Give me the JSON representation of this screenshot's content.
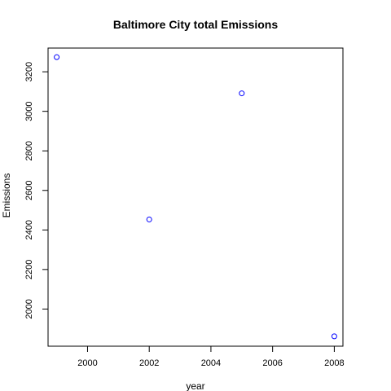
{
  "chart_data": {
    "type": "scatter",
    "title": "Baltimore City total Emissions",
    "xlabel": "year",
    "ylabel": "Emissions",
    "x": [
      1999,
      2002,
      2005,
      2008
    ],
    "y": [
      3274,
      2453,
      3091,
      1862
    ],
    "xlim": [
      1998.72,
      2008.28
    ],
    "ylim": [
      1812,
      3320
    ],
    "xticks": [
      2000,
      2002,
      2004,
      2006,
      2008
    ],
    "xtick_labels": [
      "2000",
      "2002",
      "2004",
      "2006",
      "2008"
    ],
    "yticks": [
      2000,
      2200,
      2400,
      2600,
      2800,
      3000,
      3200
    ],
    "ytick_labels": [
      "2000",
      "2200",
      "2400",
      "2600",
      "2800",
      "3000",
      "3200"
    ],
    "grid": false,
    "marker": "open-circle",
    "point_color": "#0000ff"
  }
}
